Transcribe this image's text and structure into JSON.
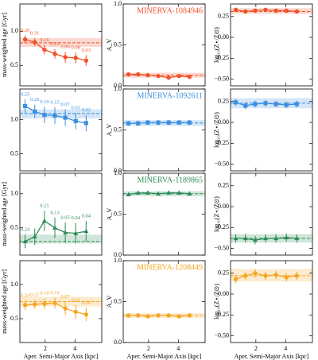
{
  "chart_data": [
    {
      "type": "line",
      "x": [
        0.65,
        1.3,
        1.95,
        2.65,
        3.35,
        4.05,
        4.75
      ],
      "xlim": [
        0.3,
        5.8
      ],
      "xticks": [
        2,
        4
      ],
      "ylabel": "mass-weighted age [Gyr]",
      "ylim": [
        0.2,
        1.4
      ],
      "yticks": [
        0.5,
        {
          "value": 1,
          "label": "1.0"
        }
      ],
      "marker": "circle",
      "series": [
        {
          "color": "#f0532a",
          "values": [
            0.88,
            0.84,
            0.73,
            0.67,
            0.62,
            0.61,
            0.57
          ],
          "errors": [
            0.06,
            0.06,
            0.07,
            0.07,
            0.08,
            0.08,
            0.08
          ],
          "annotations": [
            "0.20",
            "0.31",
            "0.16",
            "0.23",
            "0.06",
            "0.08",
            "0.03"
          ]
        }
      ],
      "band": [
        0.77,
        0.9
      ],
      "median": 0.83
    },
    {
      "type": "line",
      "title": "MINERVA-1084946",
      "x": [
        0.65,
        1.3,
        1.95,
        2.65,
        3.35,
        4.05,
        4.75
      ],
      "xlim": [
        0.3,
        5.8
      ],
      "xticks": [
        2,
        4
      ],
      "ylabel": "A_V",
      "ylim": [
        0,
        1
      ],
      "yticks": [
        {
          "value": 0,
          "label": "0.0"
        },
        0.5,
        {
          "value": 1,
          "label": "1.0"
        }
      ],
      "marker": "circle",
      "series": [
        {
          "color": "#f0532a",
          "values": [
            0.14,
            0.14,
            0.13,
            0.12,
            0.1,
            0.12,
            0.11
          ],
          "errors": [
            0.02,
            0.02,
            0.02,
            0.02,
            0.02,
            0.02,
            0.02
          ]
        }
      ],
      "band": [
        0.1,
        0.16
      ],
      "median": 0.13
    },
    {
      "type": "line",
      "x": [
        0.65,
        1.3,
        1.95,
        2.65,
        3.35,
        4.05,
        4.75
      ],
      "xlim": [
        0.3,
        5.8
      ],
      "xticks": [
        2,
        4
      ],
      "ylabel": "log₁₀(Z⋆/Z⊙)",
      "ylim": [
        -0.58,
        0.4
      ],
      "yticks": [
        0.25,
        {
          "value": 0,
          "label": "0.00"
        },
        {
          "value": -0.25,
          "label": "−0.25"
        },
        {
          "value": -0.5,
          "label": "−0.50"
        }
      ],
      "marker": "circle",
      "series": [
        {
          "color": "#f0532a",
          "values": [
            0.33,
            0.31,
            0.32,
            0.33,
            0.32,
            0.32,
            0.31
          ],
          "errors": [
            0.02,
            0.02,
            0.02,
            0.02,
            0.02,
            0.02,
            0.02
          ]
        }
      ],
      "band": [
        0.28,
        0.35
      ],
      "median": 0.31
    },
    {
      "type": "line",
      "x": [
        0.65,
        1.3,
        1.95,
        2.65,
        3.35,
        4.05,
        4.75
      ],
      "xlim": [
        0.3,
        5.8
      ],
      "xticks": [
        2,
        4
      ],
      "ylim": [
        0.25,
        1.45
      ],
      "yticks": [
        0.5,
        {
          "value": 1,
          "label": "1.0"
        }
      ],
      "marker": "square",
      "series": [
        {
          "color": "#3d8fe0",
          "values": [
            1.2,
            1.12,
            1.07,
            1.06,
            1.03,
            0.98,
            0.95
          ],
          "errors": [
            0.1,
            0.1,
            0.12,
            0.12,
            0.12,
            0.12,
            0.12
          ],
          "annotations": [
            "0.25",
            "0.20",
            "0.19",
            "0.15",
            "0.07",
            "0.05",
            "0.02"
          ]
        }
      ],
      "band": [
        1.02,
        1.15
      ],
      "median": 1.09
    },
    {
      "type": "line",
      "title": "MINERVA-1092611",
      "x": [
        0.65,
        1.3,
        1.95,
        2.65,
        3.35,
        4.05,
        4.75
      ],
      "xlim": [
        0.3,
        5.8
      ],
      "xticks": [
        2,
        4
      ],
      "ylabel": "A_V",
      "ylim": [
        0,
        1
      ],
      "yticks": [
        {
          "value": 0,
          "label": "0.0"
        },
        0.5,
        {
          "value": 1,
          "label": "1.0"
        }
      ],
      "marker": "square",
      "series": [
        {
          "color": "#3d8fe0",
          "values": [
            0.58,
            0.58,
            0.59,
            0.59,
            0.59,
            0.59,
            0.59
          ],
          "errors": [
            0.03,
            0.03,
            0.03,
            0.03,
            0.03,
            0.03,
            0.03
          ]
        }
      ],
      "band": [
        0.55,
        0.62
      ],
      "median": 0.585
    },
    {
      "type": "line",
      "x": [
        0.65,
        1.3,
        1.95,
        2.65,
        3.35,
        4.05,
        4.75
      ],
      "xlim": [
        0.3,
        5.8
      ],
      "xticks": [
        2,
        4
      ],
      "ylabel": "log₁₀(Z⋆/Z⊙)",
      "ylim": [
        -0.58,
        0.4
      ],
      "yticks": [
        0.25,
        {
          "value": 0,
          "label": "0.00"
        },
        {
          "value": -0.25,
          "label": "−0.25"
        },
        {
          "value": -0.5,
          "label": "−0.50"
        }
      ],
      "marker": "square",
      "series": [
        {
          "color": "#3d8fe0",
          "values": [
            0.24,
            0.2,
            0.22,
            0.23,
            0.22,
            0.21,
            0.22
          ],
          "errors": [
            0.04,
            0.04,
            0.04,
            0.04,
            0.04,
            0.04,
            0.04
          ]
        }
      ],
      "band": [
        0.17,
        0.29
      ],
      "median": 0.23
    },
    {
      "type": "line",
      "x": [
        0.65,
        1.3,
        1.95,
        2.65,
        3.35,
        4.05,
        4.75
      ],
      "xlim": [
        0.3,
        5.8
      ],
      "xticks": [
        2,
        4
      ],
      "ylabel": "mass-weighted age [Gyr]",
      "ylim": [
        0.1,
        1.3
      ],
      "yticks": [
        0.5,
        {
          "value": 1,
          "label": "1.0"
        }
      ],
      "marker": "triangle",
      "series": [
        {
          "color": "#2e8b57",
          "values": [
            0.3,
            0.37,
            0.6,
            0.5,
            0.43,
            0.42,
            0.45
          ],
          "errors": [
            0.1,
            0.12,
            0.15,
            0.15,
            0.15,
            0.15,
            0.15
          ],
          "annotations": [
            "0.24",
            null,
            "0.21",
            "0.13",
            "0.05",
            "0.04",
            "0.04"
          ]
        }
      ],
      "band": [
        0.27,
        0.4
      ],
      "median": 0.3
    },
    {
      "type": "line",
      "title": "MINERVA-1189865",
      "x": [
        0.65,
        1.3,
        1.95,
        2.65,
        3.35,
        4.05,
        4.75
      ],
      "xlim": [
        0.3,
        5.8
      ],
      "xticks": [
        2,
        4
      ],
      "ylabel": "A_V",
      "ylim": [
        0,
        1
      ],
      "yticks": [
        {
          "value": 0,
          "label": "0.0"
        },
        0.5,
        {
          "value": 1,
          "label": "1.0"
        }
      ],
      "marker": "triangle",
      "series": [
        {
          "color": "#2e8b57",
          "values": [
            0.74,
            0.76,
            0.76,
            0.75,
            0.76,
            0.76,
            0.75
          ],
          "errors": [
            0.02,
            0.02,
            0.02,
            0.02,
            0.02,
            0.02,
            0.02
          ]
        }
      ],
      "band": [
        0.72,
        0.78
      ],
      "median": 0.75
    },
    {
      "type": "line",
      "x": [
        0.65,
        1.3,
        1.95,
        2.65,
        3.35,
        4.05,
        4.75
      ],
      "xlim": [
        0.3,
        5.8
      ],
      "xticks": [
        2,
        4
      ],
      "ylabel": "log₁₀(Z⋆/Z⊙)",
      "ylim": [
        -0.58,
        0.4
      ],
      "yticks": [
        0.25,
        {
          "value": 0,
          "label": "0.00"
        },
        {
          "value": -0.25,
          "label": "−0.25"
        },
        {
          "value": -0.5,
          "label": "−0.50"
        }
      ],
      "marker": "triangle",
      "series": [
        {
          "color": "#2e8b57",
          "values": [
            -0.38,
            -0.38,
            -0.4,
            -0.38,
            -0.38,
            -0.37,
            -0.38
          ],
          "errors": [
            0.05,
            0.05,
            0.05,
            0.05,
            0.05,
            0.05,
            0.05
          ]
        }
      ],
      "band": [
        -0.43,
        -0.33
      ],
      "median": -0.38
    },
    {
      "type": "line",
      "x": [
        0.65,
        1.3,
        1.95,
        2.65,
        3.35,
        4.05,
        4.75
      ],
      "xlim": [
        0.3,
        5.8
      ],
      "xticks": [
        2,
        4
      ],
      "xlabel": "Aper. Semi-Major Axis [kpc]",
      "ylabel": "mass-weighted age [Gyr]",
      "ylim": [
        0.15,
        1.35
      ],
      "yticks": [
        0.5,
        {
          "value": 1,
          "label": "1.0"
        }
      ],
      "marker": "circle",
      "series": [
        {
          "color": "#f5a623",
          "values": [
            0.7,
            0.71,
            0.72,
            0.73,
            0.65,
            0.6,
            0.56
          ],
          "errors": [
            0.07,
            0.07,
            0.08,
            0.08,
            0.1,
            0.1,
            0.1
          ],
          "annotations": [
            "0.24",
            "0.21",
            "0.18",
            "0.12",
            "0.07",
            "0.05",
            "0.04"
          ]
        }
      ],
      "band": [
        0.68,
        0.82
      ],
      "median": 0.75
    },
    {
      "type": "line",
      "title": "MINERVA-1208449",
      "x": [
        0.65,
        1.3,
        1.95,
        2.65,
        3.35,
        4.05,
        4.75
      ],
      "xlim": [
        0.3,
        5.8
      ],
      "xticks": [
        2,
        4
      ],
      "xlabel": "Aper. Semi-Major Axis [kpc]",
      "ylabel": "A_V",
      "ylim": [
        0,
        1
      ],
      "yticks": [
        {
          "value": 0,
          "label": "0.0"
        },
        0.5,
        {
          "value": 1,
          "label": "1.0"
        }
      ],
      "marker": "circle",
      "series": [
        {
          "color": "#f5a623",
          "values": [
            0.33,
            0.33,
            0.32,
            0.33,
            0.33,
            0.32,
            0.33
          ],
          "errors": [
            0.02,
            0.02,
            0.02,
            0.02,
            0.02,
            0.02,
            0.02
          ]
        }
      ],
      "band": [
        0.3,
        0.36
      ],
      "median": 0.33
    },
    {
      "type": "line",
      "x": [
        0.65,
        1.3,
        1.95,
        2.65,
        3.35,
        4.05,
        4.75
      ],
      "xlim": [
        0.3,
        5.8
      ],
      "xticks": [
        2,
        4
      ],
      "xlabel": "Aper. Semi-Major Axis [kpc]",
      "ylabel": "log₁₀(Z⋆/Z⊙)",
      "ylim": [
        -0.58,
        0.4
      ],
      "yticks": [
        0.25,
        {
          "value": 0,
          "label": "0.00"
        },
        {
          "value": -0.25,
          "label": "−0.25"
        },
        {
          "value": -0.5,
          "label": "−0.50"
        }
      ],
      "marker": "circle",
      "series": [
        {
          "color": "#f5a623",
          "values": [
            0.18,
            0.22,
            0.25,
            0.22,
            0.23,
            0.2,
            0.22
          ],
          "errors": [
            0.05,
            0.05,
            0.05,
            0.05,
            0.05,
            0.05,
            0.05
          ]
        }
      ],
      "band": [
        0.15,
        0.3
      ],
      "median": 0.22
    }
  ]
}
